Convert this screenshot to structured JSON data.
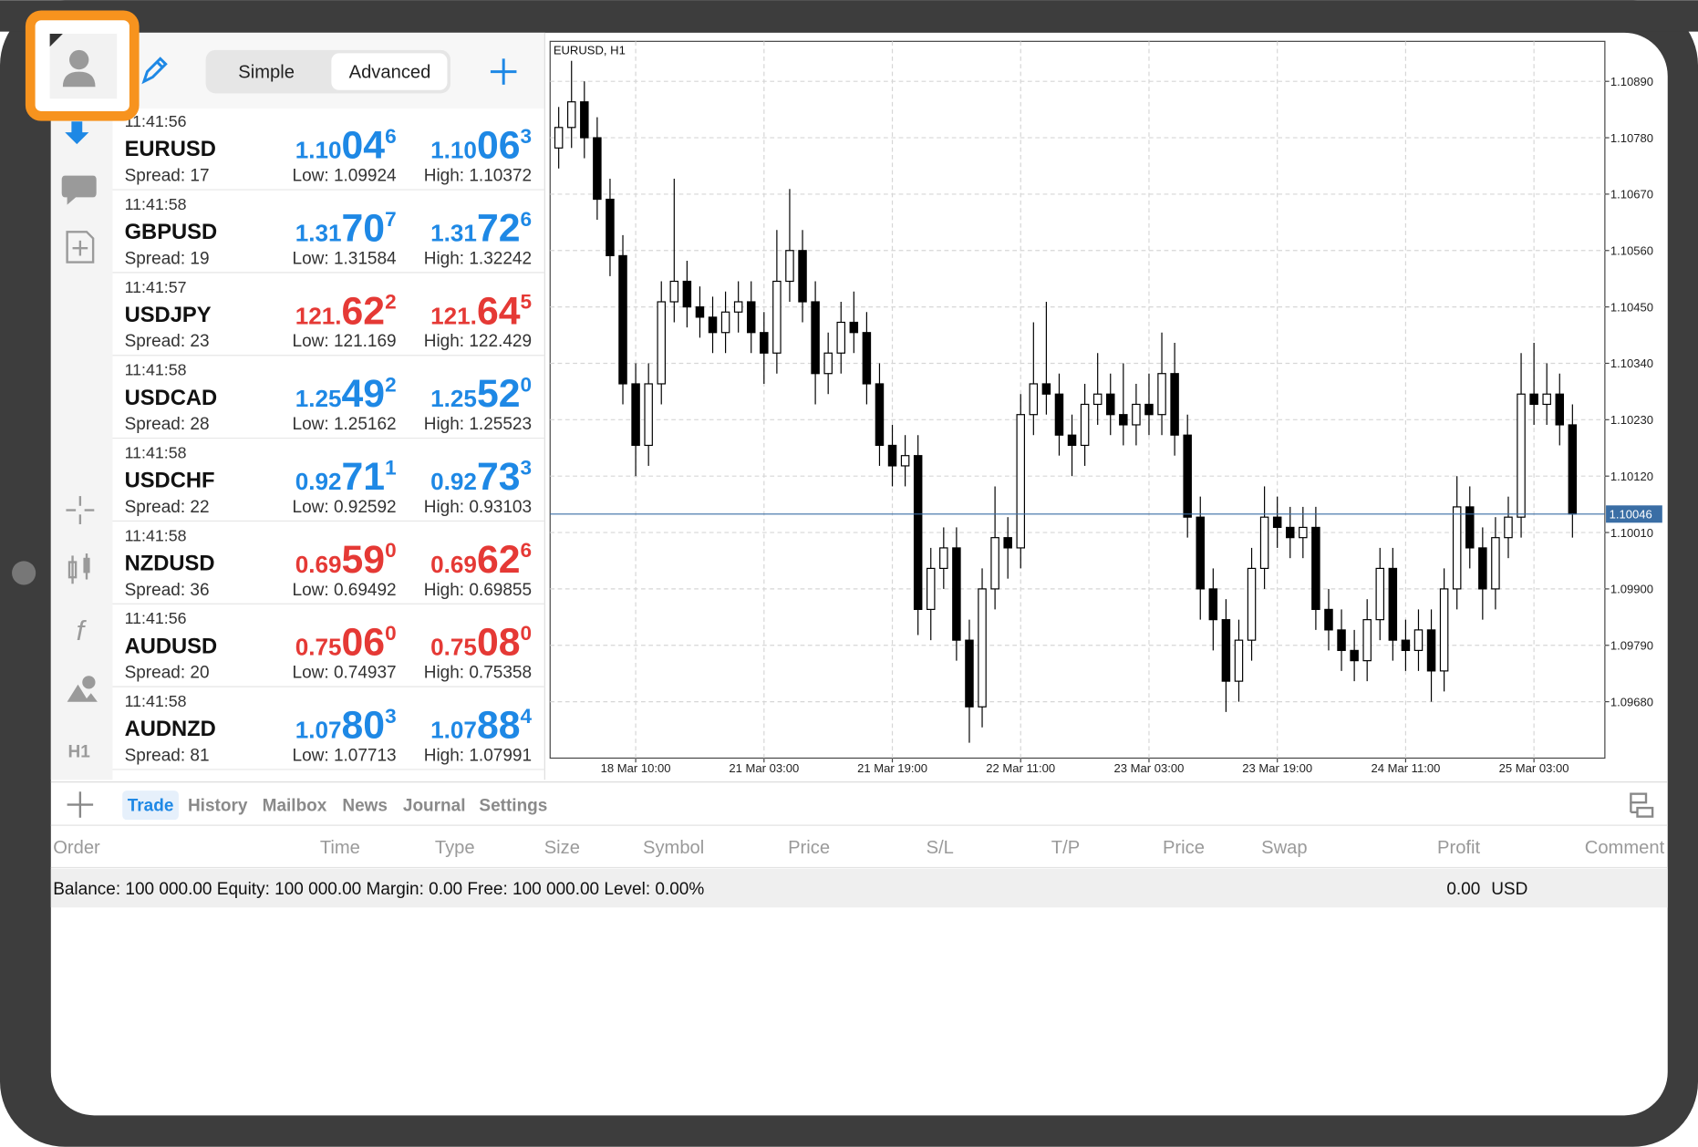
{
  "toolbar": {
    "segments": [
      "Simple",
      "Advanced"
    ],
    "side_label": "H1"
  },
  "quotes": [
    {
      "time": "11:41:56",
      "symbol": "EURUSD",
      "spread": "Spread: 17",
      "bid": {
        "prefix": "1.10",
        "big": "04",
        "pip": "6"
      },
      "ask": {
        "prefix": "1.10",
        "big": "06",
        "pip": "3"
      },
      "low": "Low: 1.09924",
      "high": "High: 1.10372",
      "color": "#1e88e5"
    },
    {
      "time": "11:41:58",
      "symbol": "GBPUSD",
      "spread": "Spread: 19",
      "bid": {
        "prefix": "1.31",
        "big": "70",
        "pip": "7"
      },
      "ask": {
        "prefix": "1.31",
        "big": "72",
        "pip": "6"
      },
      "low": "Low: 1.31584",
      "high": "High: 1.32242",
      "color": "#1e88e5"
    },
    {
      "time": "11:41:57",
      "symbol": "USDJPY",
      "spread": "Spread: 23",
      "bid": {
        "prefix": "121.",
        "big": "62",
        "pip": "2"
      },
      "ask": {
        "prefix": "121.",
        "big": "64",
        "pip": "5"
      },
      "low": "Low: 121.169",
      "high": "High: 122.429",
      "color": "#e53935"
    },
    {
      "time": "11:41:58",
      "symbol": "USDCAD",
      "spread": "Spread: 28",
      "bid": {
        "prefix": "1.25",
        "big": "49",
        "pip": "2"
      },
      "ask": {
        "prefix": "1.25",
        "big": "52",
        "pip": "0"
      },
      "low": "Low: 1.25162",
      "high": "High: 1.25523",
      "color": "#1e88e5"
    },
    {
      "time": "11:41:58",
      "symbol": "USDCHF",
      "spread": "Spread: 22",
      "bid": {
        "prefix": "0.92",
        "big": "71",
        "pip": "1"
      },
      "ask": {
        "prefix": "0.92",
        "big": "73",
        "pip": "3"
      },
      "low": "Low: 0.92592",
      "high": "High: 0.93103",
      "color": "#1e88e5"
    },
    {
      "time": "11:41:58",
      "symbol": "NZDUSD",
      "spread": "Spread: 36",
      "bid": {
        "prefix": "0.69",
        "big": "59",
        "pip": "0"
      },
      "ask": {
        "prefix": "0.69",
        "big": "62",
        "pip": "6"
      },
      "low": "Low: 0.69492",
      "high": "High: 0.69855",
      "color": "#e53935"
    },
    {
      "time": "11:41:56",
      "symbol": "AUDUSD",
      "spread": "Spread: 20",
      "bid": {
        "prefix": "0.75",
        "big": "06",
        "pip": "0"
      },
      "ask": {
        "prefix": "0.75",
        "big": "08",
        "pip": "0"
      },
      "low": "Low: 0.74937",
      "high": "High: 0.75358",
      "color": "#e53935"
    },
    {
      "time": "11:41:58",
      "symbol": "AUDNZD",
      "spread": "Spread: 81",
      "bid": {
        "prefix": "1.07",
        "big": "80",
        "pip": "3"
      },
      "ask": {
        "prefix": "1.07",
        "big": "88",
        "pip": "4"
      },
      "low": "Low: 1.07713",
      "high": "High: 1.07991",
      "color": "#1e88e5"
    }
  ],
  "chart_data": {
    "type": "candlestick",
    "title": "EURUSD, H1",
    "categories": [
      null,
      null,
      null,
      null,
      null,
      null,
      "18 Mar 10:00",
      null,
      null,
      null,
      null,
      null,
      null,
      null,
      null,
      null,
      "21 Mar 03:00",
      null,
      null,
      null,
      null,
      null,
      null,
      null,
      null,
      null,
      "21 Mar 19:00",
      null,
      null,
      null,
      null,
      null,
      null,
      null,
      null,
      null,
      "22 Mar 11:00",
      null,
      null,
      null,
      null,
      null,
      null,
      null,
      null,
      null,
      "23 Mar 03:00",
      null,
      null,
      null,
      null,
      null,
      null,
      null,
      null,
      null,
      "23 Mar 19:00",
      null,
      null,
      null,
      null,
      null,
      null,
      null,
      null,
      null,
      "24 Mar 11:00",
      null,
      null,
      null,
      null,
      null,
      null,
      null,
      null,
      null,
      "25 Mar 03:00",
      null,
      null,
      null
    ],
    "open": [
      1.1076,
      1.108,
      1.1085,
      1.1078,
      1.1066,
      1.1055,
      1.103,
      1.1018,
      1.103,
      1.1046,
      1.105,
      1.1045,
      1.1043,
      1.104,
      1.1044,
      1.1046,
      1.104,
      1.1036,
      1.105,
      1.1056,
      1.1046,
      1.1032,
      1.1036,
      1.1042,
      1.104,
      1.103,
      1.1018,
      1.1014,
      1.1016,
      1.0986,
      1.0994,
      1.0998,
      1.098,
      1.0967,
      1.099,
      1.1,
      1.0998,
      1.1024,
      1.103,
      1.1028,
      1.102,
      1.1018,
      1.1026,
      1.1028,
      1.1024,
      1.1022,
      1.1026,
      1.1024,
      1.1032,
      1.102,
      1.1004,
      1.099,
      1.0984,
      1.0972,
      1.098,
      1.0994,
      1.1004,
      1.1002,
      1.1,
      1.1002,
      1.0986,
      1.0982,
      1.0978,
      1.0976,
      1.0984,
      1.0994,
      1.098,
      1.0978,
      1.0982,
      1.0974,
      1.099,
      1.1006,
      1.0998,
      1.099,
      1.1,
      1.1004,
      1.1028,
      1.1026,
      1.1028,
      1.1022
    ],
    "high": [
      1.1084,
      1.1093,
      1.1089,
      1.1082,
      1.107,
      1.1059,
      1.1034,
      1.1034,
      1.105,
      1.107,
      1.1054,
      1.1049,
      1.1047,
      1.1048,
      1.105,
      1.105,
      1.1044,
      1.106,
      1.1068,
      1.106,
      1.105,
      1.104,
      1.1046,
      1.1048,
      1.1044,
      1.1034,
      1.1022,
      1.102,
      1.102,
      1.0998,
      1.1002,
      1.1002,
      1.0984,
      1.0994,
      1.101,
      1.1004,
      1.1028,
      1.1042,
      1.1046,
      1.1032,
      1.1024,
      1.103,
      1.1036,
      1.1032,
      1.1034,
      1.103,
      1.1032,
      1.104,
      1.1038,
      1.1024,
      1.1008,
      1.0994,
      1.0988,
      1.0984,
      1.0998,
      1.101,
      1.1008,
      1.1006,
      1.1006,
      1.1006,
      1.099,
      1.0986,
      1.0982,
      1.0988,
      1.0998,
      1.0998,
      1.0984,
      1.0986,
      1.0986,
      1.0994,
      1.1012,
      1.101,
      1.1002,
      1.1004,
      1.1008,
      1.1036,
      1.1038,
      1.1034,
      1.1032,
      1.1026
    ],
    "low": [
      1.1072,
      1.1076,
      1.1074,
      1.1062,
      1.1051,
      1.1026,
      1.1012,
      1.1014,
      1.1026,
      1.1042,
      1.1041,
      1.1039,
      1.1036,
      1.1036,
      1.104,
      1.1036,
      1.103,
      1.1032,
      1.1046,
      1.1042,
      1.1026,
      1.1028,
      1.1032,
      1.1036,
      1.1026,
      1.1014,
      1.101,
      1.101,
      1.0981,
      1.098,
      1.099,
      1.0976,
      1.096,
      1.0963,
      1.0986,
      1.0992,
      1.0994,
      1.102,
      1.1024,
      1.1016,
      1.1012,
      1.1014,
      1.1022,
      1.102,
      1.1018,
      1.1018,
      1.102,
      1.102,
      1.1016,
      1.1,
      1.0984,
      1.0978,
      1.0966,
      1.0968,
      1.0976,
      1.099,
      1.0998,
      1.0996,
      1.0996,
      1.0982,
      1.0978,
      1.0974,
      1.0972,
      1.0972,
      1.098,
      1.0976,
      1.0974,
      1.0974,
      1.0968,
      1.097,
      1.0986,
      1.0994,
      1.0984,
      1.0986,
      1.0996,
      1.1,
      1.1022,
      1.1022,
      1.1018,
      1.1
    ],
    "close": [
      1.108,
      1.1085,
      1.1078,
      1.1066,
      1.1055,
      1.103,
      1.1018,
      1.103,
      1.1046,
      1.105,
      1.1045,
      1.1043,
      1.104,
      1.1044,
      1.1046,
      1.104,
      1.1036,
      1.105,
      1.1056,
      1.1046,
      1.1032,
      1.1036,
      1.1042,
      1.104,
      1.103,
      1.1018,
      1.1014,
      1.1016,
      1.0986,
      1.0994,
      1.0998,
      1.098,
      1.0967,
      1.099,
      1.1,
      1.0998,
      1.1024,
      1.103,
      1.1028,
      1.102,
      1.1018,
      1.1026,
      1.1028,
      1.1024,
      1.1022,
      1.1026,
      1.1024,
      1.1032,
      1.102,
      1.1004,
      1.099,
      1.0984,
      1.0972,
      1.098,
      1.0994,
      1.1004,
      1.1002,
      1.1,
      1.1002,
      1.0986,
      1.0982,
      1.0978,
      1.0976,
      1.0984,
      1.0994,
      1.098,
      1.0978,
      1.0982,
      1.0974,
      1.099,
      1.1006,
      1.0998,
      1.099,
      1.1,
      1.1004,
      1.1028,
      1.1026,
      1.1028,
      1.1022,
      1.10046
    ],
    "ylim": [
      1.0957,
      1.10968
    ],
    "yticks": [
      {
        "value": 1.1089,
        "label": "1.10890"
      },
      {
        "value": 1.1078,
        "label": "1.10780"
      },
      {
        "value": 1.1067,
        "label": "1.10670"
      },
      {
        "value": 1.1056,
        "label": "1.10560"
      },
      {
        "value": 1.1045,
        "label": "1.10450"
      },
      {
        "value": 1.1034,
        "label": "1.10340"
      },
      {
        "value": 1.1023,
        "label": "1.10230"
      },
      {
        "value": 1.1012,
        "label": "1.10120"
      },
      {
        "value": 1.1001,
        "label": "1.10010"
      },
      {
        "value": 1.099,
        "label": "1.09900"
      },
      {
        "value": 1.0979,
        "label": "1.09790"
      },
      {
        "value": 1.0968,
        "label": "1.09680"
      }
    ],
    "last_price": 1.10046,
    "last_price_color": "#3a6ea5",
    "up_color": "#ffffff",
    "down_color": "#000000",
    "grid": true
  },
  "terminal": {
    "tabs": [
      "Trade",
      "History",
      "Mailbox",
      "News",
      "Journal",
      "Settings"
    ],
    "active_tab": "Trade",
    "columns": [
      "Order",
      "Time",
      "Type",
      "Size",
      "Symbol",
      "Price",
      "S/L",
      "T/P",
      "Price",
      "Swap",
      "Profit",
      "Comment"
    ],
    "balance": "Balance: 100 000.00 Equity: 100 000.00 Margin: 0.00 Free: 100 000.00 Level: 0.00%",
    "profit": "0.00",
    "currency": "USD"
  }
}
